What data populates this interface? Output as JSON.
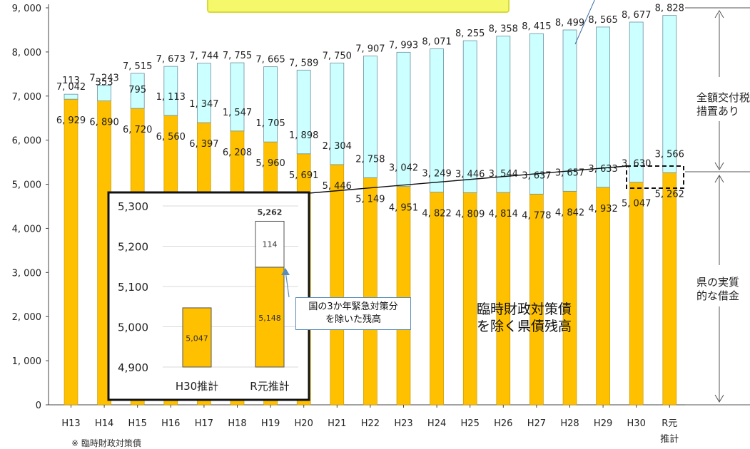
{
  "chart_data": {
    "type": "bar",
    "stacked": true,
    "categories": [
      "H13",
      "H14",
      "H15",
      "H16",
      "H17",
      "H18",
      "H19",
      "H20",
      "H21",
      "H22",
      "H23",
      "H24",
      "H25",
      "H26",
      "H27",
      "H28",
      "H29",
      "H30",
      "R元\n推計"
    ],
    "series": [
      {
        "name": "臨時財政対策債を除く県債残高",
        "values": [
          6929,
          6890,
          6720,
          6560,
          6397,
          6208,
          5960,
          5691,
          5446,
          5149,
          4951,
          4822,
          4809,
          4814,
          4778,
          4842,
          4932,
          5047,
          5262
        ],
        "color": "#ffc000"
      },
      {
        "name": "",
        "values": [
          113,
          353,
          795,
          1113,
          1347,
          1547,
          1705,
          1898,
          2304,
          2758,
          3042,
          3249,
          3446,
          3544,
          3637,
          3657,
          3633,
          3630,
          3566
        ],
        "color": "#ccffff"
      }
    ],
    "totals": [
      7042,
      7243,
      7515,
      7673,
      7744,
      7755,
      7665,
      7589,
      7750,
      7907,
      7993,
      8071,
      8255,
      8358,
      8415,
      8499,
      8565,
      8677,
      8828
    ],
    "value_labels": {
      "bottom": [
        "6, 929",
        "6, 890",
        "6, 720",
        "6, 560",
        "6, 397",
        "6, 208",
        "5, 960",
        "5, 691",
        "5, 446",
        "5, 149",
        "4, 951",
        "4, 822",
        "4, 809",
        "4, 814",
        "4, 778",
        "4, 842",
        "4, 932",
        "5, 047",
        "5, 262"
      ],
      "top": [
        "113",
        "353",
        "795",
        "1, 113",
        "1, 347",
        "1, 547",
        "1, 705",
        "1, 898",
        "2, 304",
        "2, 758",
        "3, 042",
        "3, 249",
        "3, 446",
        "3, 544",
        "3, 637",
        "3, 657",
        "3, 633",
        "3, 630",
        "3, 566"
      ],
      "totals": [
        "7, 042",
        "7, 243",
        "7, 515",
        "7, 673",
        "7, 744",
        "7, 755",
        "7, 665",
        "7, 589",
        "7, 750",
        "7, 907",
        "7, 993",
        "8, 071",
        "8, 255",
        "8, 358",
        "8, 415",
        "8, 499",
        "8, 565",
        "8, 677",
        "8, 828"
      ]
    },
    "ylim": [
      0,
      9000
    ],
    "yticks": [
      "0",
      "1, 000",
      "2, 000",
      "3, 000",
      "4, 000",
      "5, 000",
      "6, 000",
      "7, 000",
      "8, 000",
      "9, 000"
    ],
    "grid": false,
    "inset": {
      "type": "bar",
      "categories": [
        "H30推計",
        "R元推計"
      ],
      "ylim": [
        4900,
        5300
      ],
      "yticks": [
        "4,900",
        "5,000",
        "5,100",
        "5,200",
        "5,300"
      ],
      "bars": [
        {
          "base": 5047,
          "base_label": "5,047",
          "extra": 0
        },
        {
          "base": 5148,
          "base_label": "5,148",
          "extra": 114,
          "extra_label": "114",
          "total_label": "5,262"
        }
      ],
      "callout": "国の3か年緊急対策分\nを除いた残高"
    }
  },
  "annotations": {
    "upper_bracket_label": "全額交付税\n措置あり",
    "lower_bracket_label": "県の実質\n的な借金",
    "center_label": "臨時財政対策債\nを除く県債残高",
    "footnote": "※ 臨時財政対策債"
  },
  "colors": {
    "yellow": "#ffc000",
    "cyan": "#ccffff",
    "banner": "#f5f86a",
    "callout_border": "#5b8db8"
  }
}
